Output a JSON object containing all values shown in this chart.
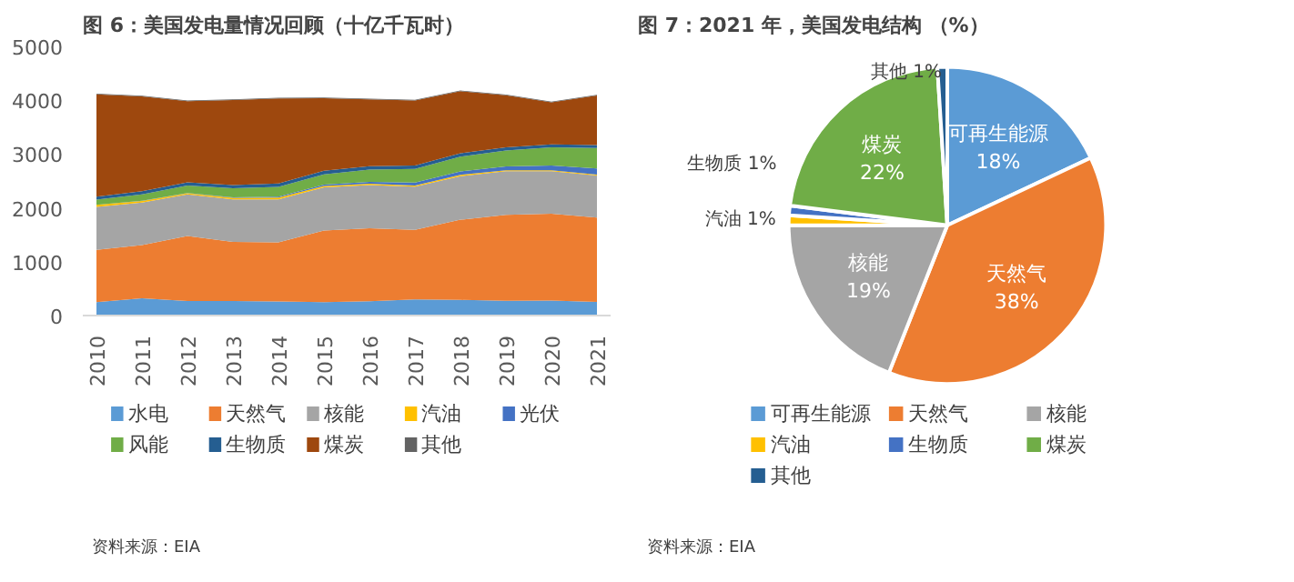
{
  "chart_data": [
    {
      "type": "area",
      "stacked": true,
      "title": "图 6：美国发电量情况回顾（十亿千瓦时）",
      "categories": [
        "2010",
        "2011",
        "2012",
        "2013",
        "2014",
        "2015",
        "2016",
        "2017",
        "2018",
        "2019",
        "2020",
        "2021"
      ],
      "ylim": [
        0,
        5000
      ],
      "yticks": [
        0,
        1000,
        2000,
        3000,
        4000,
        5000
      ],
      "legend": "bottom",
      "annotations": [
        "资料来源：EIA"
      ],
      "series": [
        {
          "name": "水电",
          "color": "#5b9bd5",
          "values": [
            250,
            320,
            270,
            270,
            260,
            250,
            265,
            300,
            290,
            275,
            280,
            255
          ]
        },
        {
          "name": "天然气",
          "color": "#ed7d31",
          "values": [
            970,
            990,
            1210,
            1100,
            1100,
            1330,
            1355,
            1290,
            1490,
            1595,
            1610,
            1565
          ]
        },
        {
          "name": "核能",
          "color": "#a5a5a5",
          "values": [
            800,
            790,
            770,
            790,
            800,
            800,
            805,
            805,
            810,
            810,
            790,
            780
          ]
        },
        {
          "name": "汽油",
          "color": "#ffc000",
          "values": [
            37,
            30,
            23,
            27,
            30,
            28,
            24,
            21,
            25,
            18,
            17,
            19
          ]
        },
        {
          "name": "光伏",
          "color": "#4472c4",
          "values": [
            1,
            2,
            4,
            9,
            18,
            25,
            36,
            53,
            64,
            72,
            90,
            115
          ]
        },
        {
          "name": "风能",
          "color": "#70ad47",
          "values": [
            95,
            120,
            140,
            168,
            182,
            191,
            227,
            254,
            273,
            295,
            338,
            380
          ]
        },
        {
          "name": "生物质",
          "color": "#255e91",
          "values": [
            56,
            57,
            57,
            60,
            63,
            64,
            63,
            63,
            64,
            58,
            56,
            54
          ]
        },
        {
          "name": "煤炭",
          "color": "#9e480e",
          "values": [
            1900,
            1760,
            1510,
            1580,
            1580,
            1350,
            1240,
            1210,
            1150,
            970,
            780,
            920
          ]
        },
        {
          "name": "其他",
          "color": "#636363",
          "values": [
            13,
            13,
            13,
            13,
            13,
            13,
            13,
            13,
            13,
            13,
            13,
            13
          ]
        }
      ]
    },
    {
      "type": "pie",
      "title": "图 7：2021 年，美国发电结构 （%）",
      "categories": [
        "可再生能源",
        "天然气",
        "核能",
        "汽油",
        "生物质",
        "煤炭",
        "其他"
      ],
      "values": [
        18,
        38,
        19,
        1,
        1,
        22,
        1
      ],
      "colors": [
        "#5b9bd5",
        "#ed7d31",
        "#a5a5a5",
        "#ffc000",
        "#4472c4",
        "#70ad47",
        "#255e91"
      ],
      "value_labels": [
        "18%",
        "38%",
        "19%",
        "1%",
        "1%",
        "22%",
        "1%"
      ],
      "legend": "bottom",
      "annotations": [
        "资料来源：EIA"
      ]
    }
  ]
}
